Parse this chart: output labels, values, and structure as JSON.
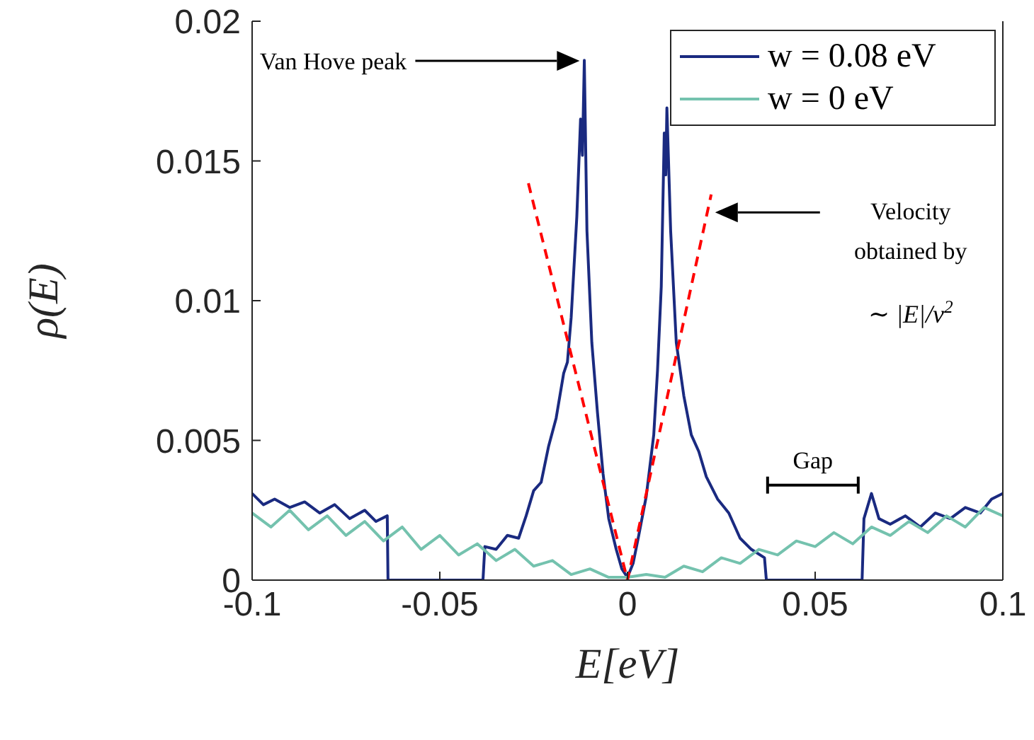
{
  "chart_data": {
    "type": "line",
    "xlabel": "E[eV]",
    "ylabel": "ρ(E)",
    "xlim": [
      -0.1,
      0.1
    ],
    "xticks": [
      -0.1,
      -0.05,
      0,
      0.05,
      0.1
    ],
    "ylim": [
      0,
      0.02
    ],
    "yticks": [
      0,
      0.005,
      0.01,
      0.015,
      0.02
    ],
    "grid": false,
    "legend": "top right",
    "marker": "none",
    "series": [
      {
        "name": "w = 0.08 eV",
        "color": "#1a2a80",
        "x": [
          -0.1,
          -0.097,
          -0.094,
          -0.09,
          -0.086,
          -0.082,
          -0.078,
          -0.074,
          -0.07,
          -0.067,
          -0.064,
          -0.0638,
          -0.0385,
          -0.038,
          -0.035,
          -0.032,
          -0.029,
          -0.027,
          -0.025,
          -0.023,
          -0.021,
          -0.019,
          -0.017,
          -0.016,
          -0.015,
          -0.0135,
          -0.0125,
          -0.012,
          -0.0115,
          -0.0108,
          -0.0095,
          -0.008,
          -0.0065,
          -0.005,
          -0.003,
          -0.0015,
          0,
          0.0015,
          0.003,
          0.005,
          0.007,
          0.008,
          0.009,
          0.0098,
          0.0102,
          0.0105,
          0.0115,
          0.013,
          0.015,
          0.017,
          0.019,
          0.021,
          0.024,
          0.027,
          0.03,
          0.033,
          0.0365,
          0.037,
          0.0625,
          0.063,
          0.065,
          0.067,
          0.07,
          0.074,
          0.078,
          0.082,
          0.086,
          0.09,
          0.094,
          0.097,
          0.1
        ],
        "values": [
          0.0031,
          0.0027,
          0.0029,
          0.0026,
          0.0028,
          0.0024,
          0.0027,
          0.0022,
          0.0025,
          0.0021,
          0.0023,
          0,
          0,
          0.0012,
          0.0011,
          0.0016,
          0.0015,
          0.0023,
          0.0032,
          0.0035,
          0.0048,
          0.0058,
          0.0074,
          0.0078,
          0.0094,
          0.013,
          0.0165,
          0.0152,
          0.0186,
          0.0125,
          0.0085,
          0.006,
          0.0038,
          0.0022,
          0.0011,
          0.0004,
          0.0001,
          0.0006,
          0.0016,
          0.003,
          0.0052,
          0.0075,
          0.0105,
          0.016,
          0.0145,
          0.0169,
          0.0125,
          0.0085,
          0.0066,
          0.0052,
          0.0046,
          0.0037,
          0.0029,
          0.0024,
          0.0015,
          0.0011,
          0.0008,
          0,
          0,
          0.0022,
          0.0031,
          0.0022,
          0.002,
          0.0023,
          0.0019,
          0.0024,
          0.0022,
          0.0026,
          0.0024,
          0.0029,
          0.0031
        ]
      },
      {
        "name": "w = 0 eV",
        "color": "#74c2ae",
        "x": [
          -0.1,
          -0.095,
          -0.09,
          -0.085,
          -0.08,
          -0.075,
          -0.07,
          -0.065,
          -0.06,
          -0.055,
          -0.05,
          -0.045,
          -0.04,
          -0.035,
          -0.03,
          -0.025,
          -0.02,
          -0.015,
          -0.01,
          -0.005,
          0,
          0.005,
          0.01,
          0.015,
          0.02,
          0.025,
          0.03,
          0.035,
          0.04,
          0.045,
          0.05,
          0.055,
          0.06,
          0.065,
          0.07,
          0.075,
          0.08,
          0.085,
          0.09,
          0.095,
          0.1
        ],
        "values": [
          0.0024,
          0.0019,
          0.0025,
          0.0018,
          0.0023,
          0.0016,
          0.0021,
          0.0014,
          0.0019,
          0.0011,
          0.0016,
          0.0009,
          0.0013,
          0.0007,
          0.0011,
          0.0005,
          0.0007,
          0.0002,
          0.0004,
          0.0001,
          0.0001,
          0.0002,
          0.0001,
          0.0005,
          0.0003,
          0.0008,
          0.0006,
          0.0011,
          0.0009,
          0.0014,
          0.0012,
          0.0017,
          0.0013,
          0.0019,
          0.0016,
          0.0021,
          0.0017,
          0.0023,
          0.0019,
          0.0026,
          0.0023
        ]
      },
      {
        "type": "line",
        "color": "#ff0000",
        "line_style": "dashed",
        "x": [
          -0.0264,
          0,
          0.0223
        ],
        "values": [
          0.0142,
          0,
          0.0138
        ]
      }
    ],
    "annotations": [
      "Van Hove peak",
      "Velocity obtained by",
      "∼ |E|/v$^{2}$",
      "Gap"
    ]
  }
}
